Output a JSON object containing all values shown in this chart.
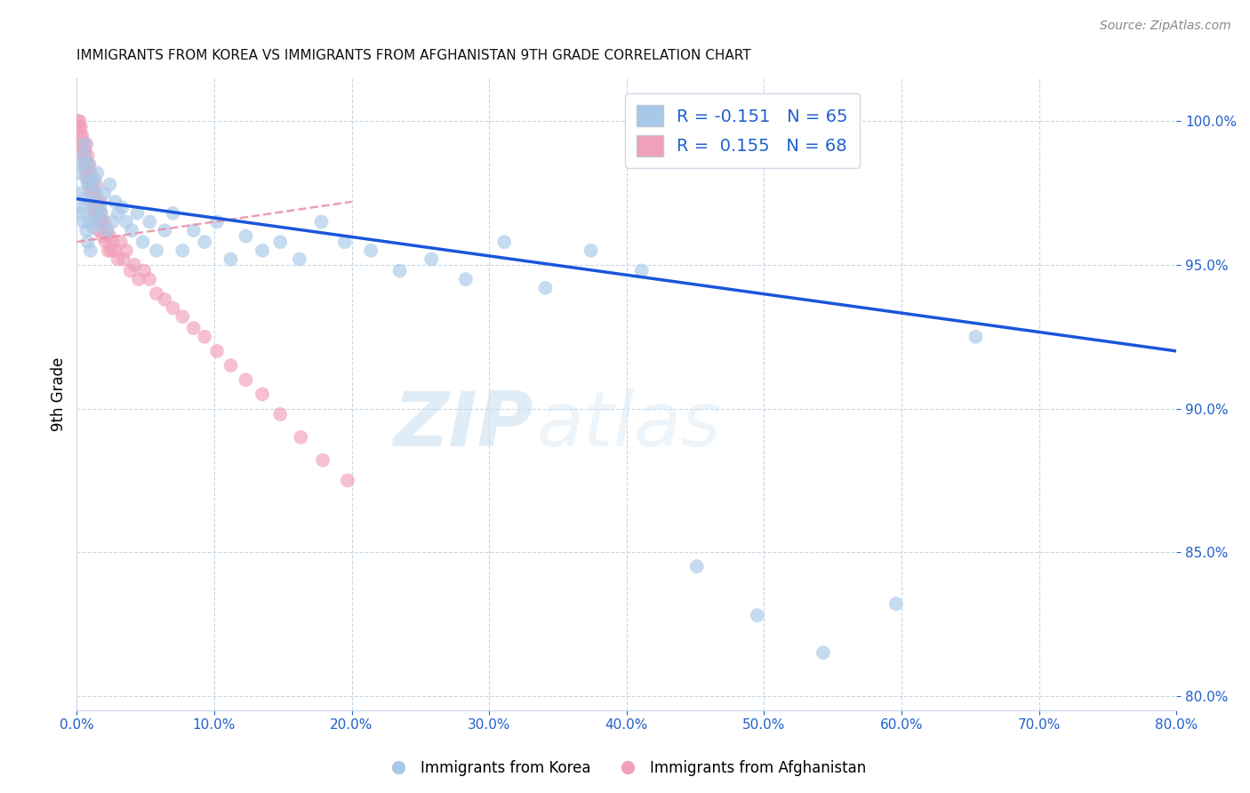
{
  "title": "IMMIGRANTS FROM KOREA VS IMMIGRANTS FROM AFGHANISTAN 9TH GRADE CORRELATION CHART",
  "source": "Source: ZipAtlas.com",
  "ylabel": "9th Grade",
  "x_min": 0.0,
  "x_max": 0.8,
  "y_min": 79.5,
  "y_max": 101.5,
  "legend_r_korea": "-0.151",
  "legend_n_korea": "65",
  "legend_r_afghan": "0.155",
  "legend_n_afghan": "68",
  "korea_color": "#a8c8e8",
  "afghan_color": "#f0a0b8",
  "korea_line_color": "#1a56db",
  "afghan_trend_color": "#e890a8",
  "watermark_zip": "ZIP",
  "watermark_atlas": "atlas",
  "korea_x": [
    0.001,
    0.002,
    0.003,
    0.004,
    0.004,
    0.005,
    0.005,
    0.006,
    0.006,
    0.007,
    0.007,
    0.008,
    0.008,
    0.009,
    0.009,
    0.01,
    0.01,
    0.011,
    0.012,
    0.013,
    0.013,
    0.014,
    0.015,
    0.016,
    0.017,
    0.018,
    0.02,
    0.022,
    0.024,
    0.026,
    0.028,
    0.03,
    0.033,
    0.036,
    0.04,
    0.044,
    0.048,
    0.053,
    0.058,
    0.064,
    0.07,
    0.077,
    0.085,
    0.093,
    0.102,
    0.112,
    0.123,
    0.135,
    0.148,
    0.162,
    0.178,
    0.195,
    0.214,
    0.235,
    0.258,
    0.283,
    0.311,
    0.341,
    0.374,
    0.411,
    0.451,
    0.495,
    0.543,
    0.596,
    0.654
  ],
  "korea_y": [
    97.5,
    98.2,
    96.8,
    98.5,
    97.0,
    98.8,
    96.5,
    99.2,
    97.3,
    98.0,
    96.2,
    97.8,
    95.8,
    98.5,
    96.5,
    97.2,
    95.5,
    97.8,
    96.3,
    98.0,
    96.8,
    97.5,
    98.2,
    96.5,
    97.0,
    96.8,
    97.5,
    96.2,
    97.8,
    96.5,
    97.2,
    96.8,
    97.0,
    96.5,
    96.2,
    96.8,
    95.8,
    96.5,
    95.5,
    96.2,
    96.8,
    95.5,
    96.2,
    95.8,
    96.5,
    95.2,
    96.0,
    95.5,
    95.8,
    95.2,
    96.5,
    95.8,
    95.5,
    94.8,
    95.2,
    94.5,
    95.8,
    94.2,
    95.5,
    94.8,
    84.5,
    82.8,
    81.5,
    83.2,
    92.5
  ],
  "afghan_x": [
    0.001,
    0.002,
    0.002,
    0.003,
    0.003,
    0.004,
    0.004,
    0.005,
    0.005,
    0.005,
    0.006,
    0.006,
    0.006,
    0.007,
    0.007,
    0.007,
    0.008,
    0.008,
    0.009,
    0.009,
    0.009,
    0.01,
    0.01,
    0.011,
    0.011,
    0.012,
    0.012,
    0.013,
    0.014,
    0.014,
    0.015,
    0.015,
    0.016,
    0.017,
    0.017,
    0.018,
    0.019,
    0.02,
    0.021,
    0.022,
    0.023,
    0.024,
    0.025,
    0.026,
    0.028,
    0.03,
    0.032,
    0.034,
    0.036,
    0.039,
    0.042,
    0.045,
    0.049,
    0.053,
    0.058,
    0.064,
    0.07,
    0.077,
    0.085,
    0.093,
    0.102,
    0.112,
    0.123,
    0.135,
    0.148,
    0.163,
    0.179,
    0.197
  ],
  "afghan_y": [
    100.0,
    99.8,
    100.0,
    99.5,
    99.8,
    99.2,
    99.5,
    99.0,
    98.8,
    99.2,
    98.5,
    99.0,
    98.8,
    98.5,
    99.2,
    98.2,
    98.0,
    98.8,
    97.8,
    98.5,
    98.2,
    97.5,
    98.2,
    97.2,
    97.8,
    97.0,
    97.5,
    96.8,
    97.2,
    97.8,
    96.5,
    97.0,
    96.2,
    96.8,
    97.2,
    96.5,
    96.0,
    96.5,
    95.8,
    96.2,
    95.5,
    96.0,
    95.5,
    95.8,
    95.5,
    95.2,
    95.8,
    95.2,
    95.5,
    94.8,
    95.0,
    94.5,
    94.8,
    94.5,
    94.0,
    93.8,
    93.5,
    93.2,
    92.8,
    92.5,
    92.0,
    91.5,
    91.0,
    90.5,
    89.8,
    89.0,
    88.2,
    87.5
  ],
  "korea_trend_x": [
    0.0,
    0.8
  ],
  "korea_trend_y": [
    97.3,
    92.0
  ],
  "afghan_trend_x": [
    0.0,
    0.2
  ],
  "afghan_trend_y": [
    95.8,
    97.2
  ],
  "x_ticks": [
    0.0,
    0.1,
    0.2,
    0.3,
    0.4,
    0.5,
    0.6,
    0.7,
    0.8
  ],
  "x_tick_labels": [
    "0.0%",
    "10.0%",
    "20.0%",
    "30.0%",
    "40.0%",
    "50.0%",
    "60.0%",
    "70.0%",
    "80.0%"
  ],
  "y_ticks": [
    80.0,
    85.0,
    90.0,
    95.0,
    100.0
  ],
  "y_tick_labels": [
    "80.0%",
    "85.0%",
    "90.0%",
    "95.0%",
    "100.0%"
  ]
}
